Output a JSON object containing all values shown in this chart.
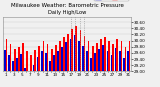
{
  "title": "Milwaukee Weather: Barometric Pressure",
  "subtitle": "Daily High/Low",
  "background_color": "#f0f0f0",
  "high_color": "#ff0000",
  "low_color": "#0000cc",
  "legend_high": "High",
  "legend_low": "Low",
  "ylim": [
    29.0,
    30.75
  ],
  "yticks": [
    29.0,
    29.2,
    29.4,
    29.6,
    29.8,
    30.0,
    30.2,
    30.4,
    30.6
  ],
  "categories": [
    "1",
    "2",
    "3",
    "4",
    "5",
    "6",
    "7",
    "8",
    "9",
    "10",
    "11",
    "12",
    "13",
    "14",
    "15",
    "16",
    "17",
    "18",
    "19",
    "20",
    "21",
    "22",
    "23",
    "24",
    "25",
    "26",
    "27",
    "28",
    "29",
    "30",
    "31"
  ],
  "high_values": [
    30.05,
    29.88,
    29.72,
    29.8,
    29.92,
    29.65,
    29.52,
    29.68,
    29.82,
    29.98,
    29.9,
    29.72,
    29.85,
    29.98,
    30.12,
    30.22,
    30.38,
    30.48,
    30.35,
    30.15,
    29.98,
    29.82,
    29.92,
    30.05,
    30.12,
    30.0,
    29.88,
    30.05,
    29.98,
    29.8,
    30.0
  ],
  "low_values": [
    29.68,
    29.52,
    29.32,
    29.42,
    29.55,
    29.12,
    29.02,
    29.22,
    29.48,
    29.65,
    29.58,
    29.35,
    29.52,
    29.65,
    29.8,
    29.95,
    30.05,
    30.18,
    29.98,
    29.82,
    29.65,
    29.42,
    29.58,
    29.72,
    29.85,
    29.65,
    29.52,
    29.75,
    29.65,
    29.42,
    29.65
  ],
  "dotted_cols": [
    16,
    17,
    18,
    19
  ],
  "title_fontsize": 4.0,
  "tick_fontsize": 3.0,
  "legend_fontsize": 3.2,
  "bar_width": 0.42
}
